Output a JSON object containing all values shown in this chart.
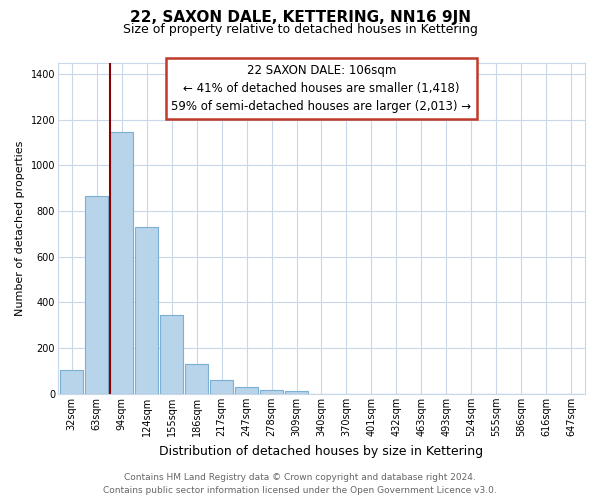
{
  "title": "22, SAXON DALE, KETTERING, NN16 9JN",
  "subtitle": "Size of property relative to detached houses in Kettering",
  "xlabel": "Distribution of detached houses by size in Kettering",
  "ylabel": "Number of detached properties",
  "categories": [
    "32sqm",
    "63sqm",
    "94sqm",
    "124sqm",
    "155sqm",
    "186sqm",
    "217sqm",
    "247sqm",
    "278sqm",
    "309sqm",
    "340sqm",
    "370sqm",
    "401sqm",
    "432sqm",
    "463sqm",
    "493sqm",
    "524sqm",
    "555sqm",
    "586sqm",
    "616sqm",
    "647sqm"
  ],
  "values": [
    105,
    865,
    1145,
    730,
    345,
    130,
    60,
    32,
    18,
    12,
    0,
    0,
    0,
    0,
    0,
    0,
    0,
    0,
    0,
    0,
    0
  ],
  "bar_color": "#b8d4ea",
  "bar_edge_color": "#7bafd4",
  "highlight_line_index": 2,
  "highlight_line_color": "#8b0000",
  "annotation_line1": "22 SAXON DALE: 106sqm",
  "annotation_line2": "← 41% of detached houses are smaller (1,418)",
  "annotation_line3": "59% of semi-detached houses are larger (2,013) →",
  "annotation_box_edgecolor": "#c0392b",
  "ylim": [
    0,
    1450
  ],
  "yticks": [
    0,
    200,
    400,
    600,
    800,
    1000,
    1200,
    1400
  ],
  "bg_color": "#ffffff",
  "grid_color": "#c8d8e8",
  "footer_line1": "Contains HM Land Registry data © Crown copyright and database right 2024.",
  "footer_line2": "Contains public sector information licensed under the Open Government Licence v3.0.",
  "title_fontsize": 11,
  "subtitle_fontsize": 9,
  "xlabel_fontsize": 9,
  "ylabel_fontsize": 8,
  "annotation_fontsize": 8.5,
  "tick_fontsize": 7,
  "footer_fontsize": 6.5
}
